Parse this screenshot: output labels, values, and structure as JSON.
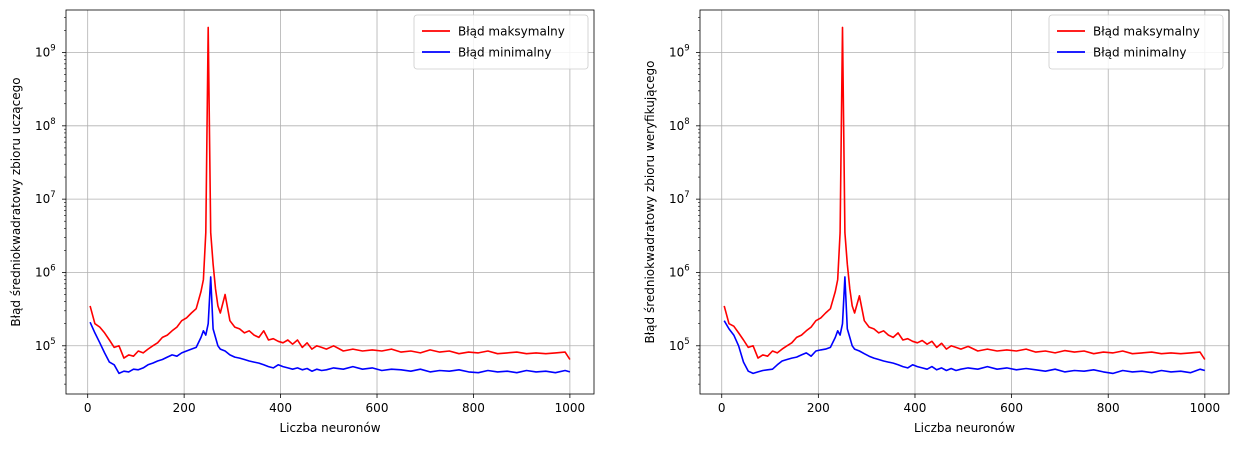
{
  "chart_data": [
    {
      "type": "line",
      "xlabel": "Liczba neuronów",
      "ylabel": "Błąd średniokwadratowy zbioru uczącego",
      "yscale": "log",
      "xlim": [
        -45,
        1050
      ],
      "ylim": [
        22000,
        3800000000
      ],
      "xticks": [
        0,
        200,
        400,
        600,
        800,
        1000
      ],
      "xtick_labels": [
        "0",
        "200",
        "400",
        "600",
        "800",
        "1000"
      ],
      "yticks": [
        100000,
        1000000,
        10000000,
        100000000,
        1000000000
      ],
      "ytick_base": "10",
      "ytick_exponents": [
        "5",
        "6",
        "7",
        "8",
        "9"
      ],
      "grid": true,
      "legend_position": "top-right",
      "series": [
        {
          "name": "Błąd maksymalny",
          "color": "#ff0000",
          "x": [
            5,
            15,
            25,
            35,
            45,
            55,
            65,
            75,
            85,
            95,
            105,
            115,
            125,
            135,
            145,
            155,
            165,
            175,
            185,
            195,
            205,
            215,
            225,
            235,
            240,
            245,
            250,
            255,
            260,
            265,
            270,
            275,
            285,
            295,
            305,
            315,
            325,
            335,
            345,
            355,
            365,
            375,
            385,
            395,
            405,
            415,
            425,
            435,
            445,
            455,
            465,
            475,
            485,
            495,
            510,
            530,
            550,
            570,
            590,
            610,
            630,
            650,
            670,
            690,
            710,
            730,
            750,
            770,
            790,
            810,
            830,
            850,
            870,
            890,
            910,
            930,
            950,
            970,
            990,
            1000
          ],
          "y": [
            350000,
            200000,
            180000,
            150000,
            120000,
            95000,
            100000,
            68000,
            75000,
            72000,
            85000,
            80000,
            90000,
            100000,
            110000,
            130000,
            140000,
            160000,
            180000,
            220000,
            240000,
            280000,
            320000,
            550000,
            800000,
            3500000,
            2200000000,
            3500000,
            1300000,
            600000,
            350000,
            280000,
            500000,
            220000,
            180000,
            170000,
            150000,
            160000,
            140000,
            130000,
            160000,
            120000,
            125000,
            115000,
            110000,
            120000,
            105000,
            120000,
            95000,
            110000,
            90000,
            100000,
            95000,
            90000,
            100000,
            85000,
            90000,
            85000,
            88000,
            85000,
            90000,
            82000,
            85000,
            80000,
            88000,
            82000,
            85000,
            78000,
            82000,
            80000,
            85000,
            78000,
            80000,
            82000,
            78000,
            80000,
            78000,
            80000,
            82000,
            65000
          ]
        },
        {
          "name": "Błąd minimalny",
          "color": "#0000ff",
          "x": [
            5,
            15,
            25,
            35,
            45,
            55,
            65,
            75,
            85,
            95,
            105,
            115,
            125,
            135,
            145,
            155,
            165,
            175,
            185,
            195,
            205,
            215,
            225,
            235,
            240,
            245,
            250,
            255,
            260,
            265,
            270,
            275,
            285,
            295,
            305,
            315,
            325,
            335,
            345,
            355,
            365,
            375,
            385,
            395,
            405,
            415,
            425,
            435,
            445,
            455,
            465,
            475,
            485,
            495,
            510,
            530,
            550,
            570,
            590,
            610,
            630,
            650,
            670,
            690,
            710,
            730,
            750,
            770,
            790,
            810,
            830,
            850,
            870,
            890,
            910,
            930,
            950,
            970,
            990,
            1000
          ],
          "y": [
            210000,
            150000,
            110000,
            80000,
            60000,
            55000,
            42000,
            45000,
            44000,
            48000,
            47000,
            50000,
            55000,
            58000,
            62000,
            65000,
            70000,
            75000,
            72000,
            80000,
            85000,
            90000,
            95000,
            130000,
            160000,
            140000,
            200000,
            870000,
            170000,
            130000,
            100000,
            90000,
            85000,
            75000,
            70000,
            68000,
            65000,
            62000,
            60000,
            58000,
            55000,
            52000,
            50000,
            55000,
            52000,
            50000,
            48000,
            50000,
            47000,
            49000,
            45000,
            48000,
            46000,
            47000,
            50000,
            48000,
            52000,
            48000,
            50000,
            46000,
            48000,
            47000,
            45000,
            48000,
            44000,
            46000,
            45000,
            47000,
            44000,
            43000,
            46000,
            44000,
            45000,
            43000,
            46000,
            44000,
            45000,
            43000,
            46000,
            44000
          ]
        }
      ]
    },
    {
      "type": "line",
      "xlabel": "Liczba neuronów",
      "ylabel": "Błąd średniokwadratowy zbioru weryfikującego",
      "yscale": "log",
      "xlim": [
        -45,
        1050
      ],
      "ylim": [
        22000,
        3800000000
      ],
      "xticks": [
        0,
        200,
        400,
        600,
        800,
        1000
      ],
      "xtick_labels": [
        "0",
        "200",
        "400",
        "600",
        "800",
        "1000"
      ],
      "yticks": [
        100000,
        1000000,
        10000000,
        100000000,
        1000000000
      ],
      "ytick_base": "10",
      "ytick_exponents": [
        "5",
        "6",
        "7",
        "8",
        "9"
      ],
      "grid": true,
      "legend_position": "top-right",
      "series": [
        {
          "name": "Błąd maksymalny",
          "color": "#ff0000",
          "x": [
            5,
            15,
            25,
            35,
            45,
            55,
            65,
            75,
            85,
            95,
            105,
            115,
            125,
            135,
            145,
            155,
            165,
            175,
            185,
            195,
            205,
            215,
            225,
            235,
            240,
            245,
            250,
            255,
            260,
            265,
            270,
            275,
            285,
            295,
            305,
            315,
            325,
            335,
            345,
            355,
            365,
            375,
            385,
            395,
            405,
            415,
            425,
            435,
            445,
            455,
            465,
            475,
            485,
            495,
            510,
            530,
            550,
            570,
            590,
            610,
            630,
            650,
            670,
            690,
            710,
            730,
            750,
            770,
            790,
            810,
            830,
            850,
            870,
            890,
            910,
            930,
            950,
            970,
            990,
            1000
          ],
          "y": [
            350000,
            200000,
            185000,
            150000,
            120000,
            95000,
            100000,
            68000,
            75000,
            72000,
            85000,
            80000,
            90000,
            100000,
            110000,
            130000,
            140000,
            160000,
            180000,
            220000,
            240000,
            280000,
            320000,
            550000,
            800000,
            3500000,
            2200000000,
            3500000,
            1300000,
            600000,
            350000,
            280000,
            480000,
            220000,
            180000,
            170000,
            150000,
            160000,
            140000,
            130000,
            150000,
            120000,
            125000,
            115000,
            110000,
            118000,
            105000,
            115000,
            95000,
            108000,
            90000,
            100000,
            95000,
            90000,
            98000,
            85000,
            90000,
            85000,
            88000,
            85000,
            90000,
            82000,
            85000,
            80000,
            86000,
            82000,
            85000,
            78000,
            82000,
            80000,
            85000,
            78000,
            80000,
            82000,
            78000,
            80000,
            78000,
            80000,
            82000,
            65000
          ]
        },
        {
          "name": "Błąd minimalny",
          "color": "#0000ff",
          "x": [
            5,
            15,
            25,
            35,
            45,
            55,
            65,
            75,
            85,
            95,
            105,
            115,
            125,
            135,
            145,
            155,
            165,
            175,
            185,
            195,
            205,
            215,
            225,
            235,
            240,
            245,
            250,
            255,
            260,
            265,
            270,
            275,
            285,
            295,
            305,
            315,
            325,
            335,
            345,
            355,
            365,
            375,
            385,
            395,
            405,
            415,
            425,
            435,
            445,
            455,
            465,
            475,
            485,
            495,
            510,
            530,
            550,
            570,
            590,
            610,
            630,
            650,
            670,
            690,
            710,
            730,
            750,
            770,
            790,
            810,
            830,
            850,
            870,
            890,
            910,
            930,
            950,
            970,
            990,
            1000
          ],
          "y": [
            220000,
            170000,
            140000,
            100000,
            60000,
            45000,
            42000,
            44000,
            46000,
            47000,
            48000,
            55000,
            62000,
            65000,
            68000,
            70000,
            75000,
            80000,
            72000,
            85000,
            88000,
            90000,
            95000,
            130000,
            160000,
            140000,
            200000,
            870000,
            170000,
            130000,
            100000,
            90000,
            85000,
            78000,
            72000,
            68000,
            65000,
            62000,
            60000,
            58000,
            55000,
            52000,
            50000,
            55000,
            52000,
            50000,
            48000,
            52000,
            47000,
            50000,
            46000,
            49000,
            46000,
            48000,
            50000,
            48000,
            52000,
            48000,
            50000,
            47000,
            49000,
            47000,
            45000,
            48000,
            44000,
            46000,
            45000,
            47000,
            44000,
            42000,
            46000,
            44000,
            45000,
            43000,
            46000,
            44000,
            45000,
            43000,
            48000,
            46000
          ]
        }
      ]
    }
  ]
}
